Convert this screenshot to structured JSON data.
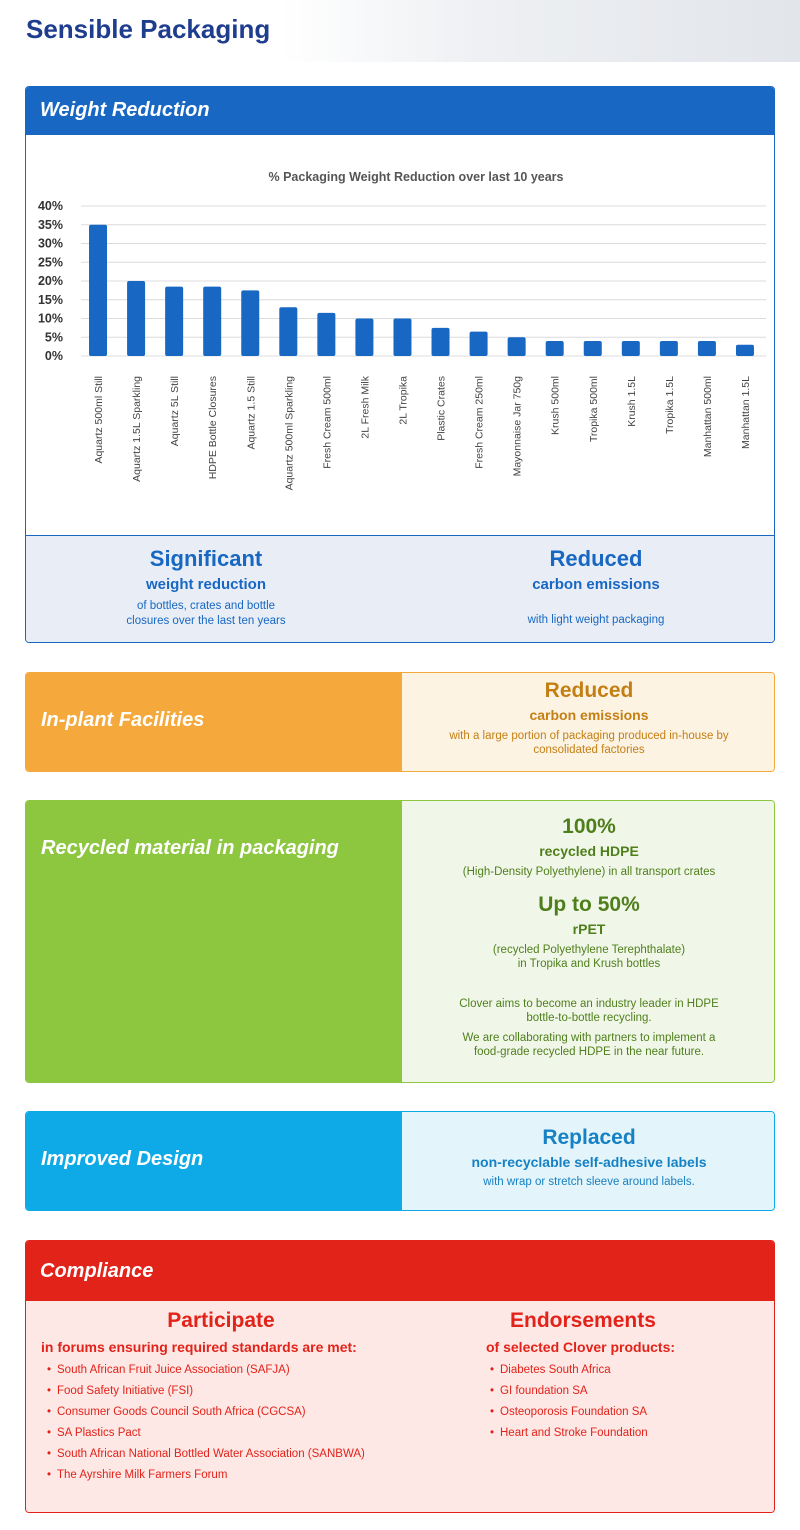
{
  "page_title": "Sensible Packaging",
  "weight": {
    "heading": "Weight Reduction",
    "left": {
      "big": "Significant",
      "mid": "weight reduction",
      "small_1": "of bottles, crates and bottle",
      "small_2": "closures over the last ten years"
    },
    "right": {
      "big": "Reduced",
      "mid": "carbon emissions",
      "small": "with light weight packaging"
    }
  },
  "chart_data": {
    "type": "bar",
    "title": "% Packaging Weight Reduction over last 10 years",
    "categories": [
      "Aquartz 500ml Still",
      "Aquartz 1.5L Sparkling",
      "Aquartz 5L Still",
      "HDPE Bottle Closures",
      "Aquartz 1.5 Still",
      "Aquartz 500ml Sparkling",
      "Fresh Cream 500ml",
      "2L Fresh Milk",
      "2L Tropika",
      "Plastic Crates",
      "Fresh Cream 250ml",
      "Mayonnaise Jar 750g",
      "Krush 500ml",
      "Tropika 500ml",
      "Krush 1.5L",
      "Tropika 1.5L",
      "Manhattan 500ml",
      "Manhattan 1.5L"
    ],
    "values": [
      35,
      20,
      18.5,
      18.5,
      17.5,
      13,
      11.5,
      10,
      10,
      7.5,
      6.5,
      5,
      4,
      4,
      4,
      4,
      4,
      3
    ],
    "yticks": [
      "0%",
      "5%",
      "10%",
      "15%",
      "20%",
      "25%",
      "30%",
      "35%",
      "40%"
    ],
    "ylim": [
      0,
      40
    ],
    "grid": true,
    "bar_color": "#1767c3"
  },
  "inplant": {
    "label": "In-plant Facilities",
    "big": "Reduced",
    "mid": "carbon emissions",
    "small_1": "with a large portion of packaging produced in-house by",
    "small_2": "consolidated factories"
  },
  "recycled": {
    "label": "Recycled material in packaging",
    "big_1": "100%",
    "mid_1": "recycled HDPE",
    "small_1": "(High-Density Polyethylene) in all transport crates",
    "big_2": "Up to 50%",
    "mid_2": "rPET",
    "small_2a": "(recycled Polyethylene Terephthalate)",
    "small_2b": "in Tropika and Krush bottles",
    "note_1a": "Clover aims to become an industry leader in HDPE",
    "note_1b": "bottle-to-bottle recycling.",
    "note_2a": "We are collaborating with partners to implement a",
    "note_2b": "food-grade recycled HDPE in the near future."
  },
  "design": {
    "label": "Improved Design",
    "big": "Replaced",
    "mid": "non-recyclable self-adhesive labels",
    "small": "with wrap or stretch sleeve around labels."
  },
  "compliance": {
    "heading": "Compliance",
    "left": {
      "big": "Participate",
      "mid": "in forums ensuring required standards are met:",
      "items": [
        "South African Fruit Juice Association (SAFJA)",
        "Food Safety Initiative (FSI)",
        "Consumer Goods Council South Africa (CGCSA)",
        "SA Plastics Pact",
        "South African National Bottled Water Association (SANBWA)",
        "The Ayrshire Milk Farmers Forum"
      ]
    },
    "right": {
      "big": "Endorsements",
      "mid": "of selected Clover products:",
      "items": [
        "Diabetes South Africa",
        "GI foundation SA",
        "Osteoporosis Foundation SA",
        "Heart and Stroke Foundation"
      ]
    }
  }
}
